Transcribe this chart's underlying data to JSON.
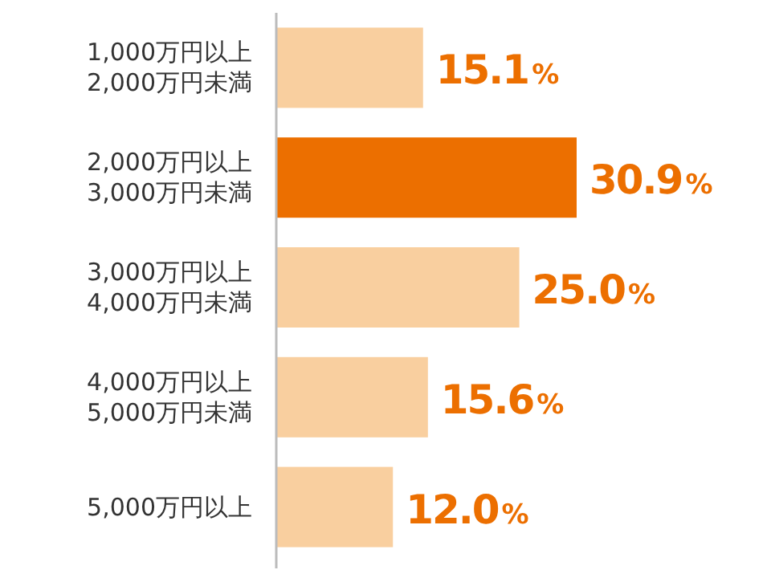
{
  "chart_data": {
    "type": "bar",
    "orientation": "horizontal",
    "tick_labels": "y",
    "categories": [
      "1,000万円以上\n2,000万円未満",
      "2,000万円以上\n3,000万円未満",
      "3,000万円以上\n4,000万円未満",
      "4,000万円以上\n5,000万円未満",
      "5,000万円以上"
    ],
    "values": [
      15.1,
      30.9,
      25.0,
      15.6,
      12.0
    ],
    "colors": [
      "#f9cf9f",
      "#ec6f00",
      "#f9cf9f",
      "#f9cf9f",
      "#f9cf9f"
    ],
    "value_labels": [
      "15.1%",
      "30.9%",
      "25.0%",
      "15.6%",
      "12.0%"
    ]
  }
}
